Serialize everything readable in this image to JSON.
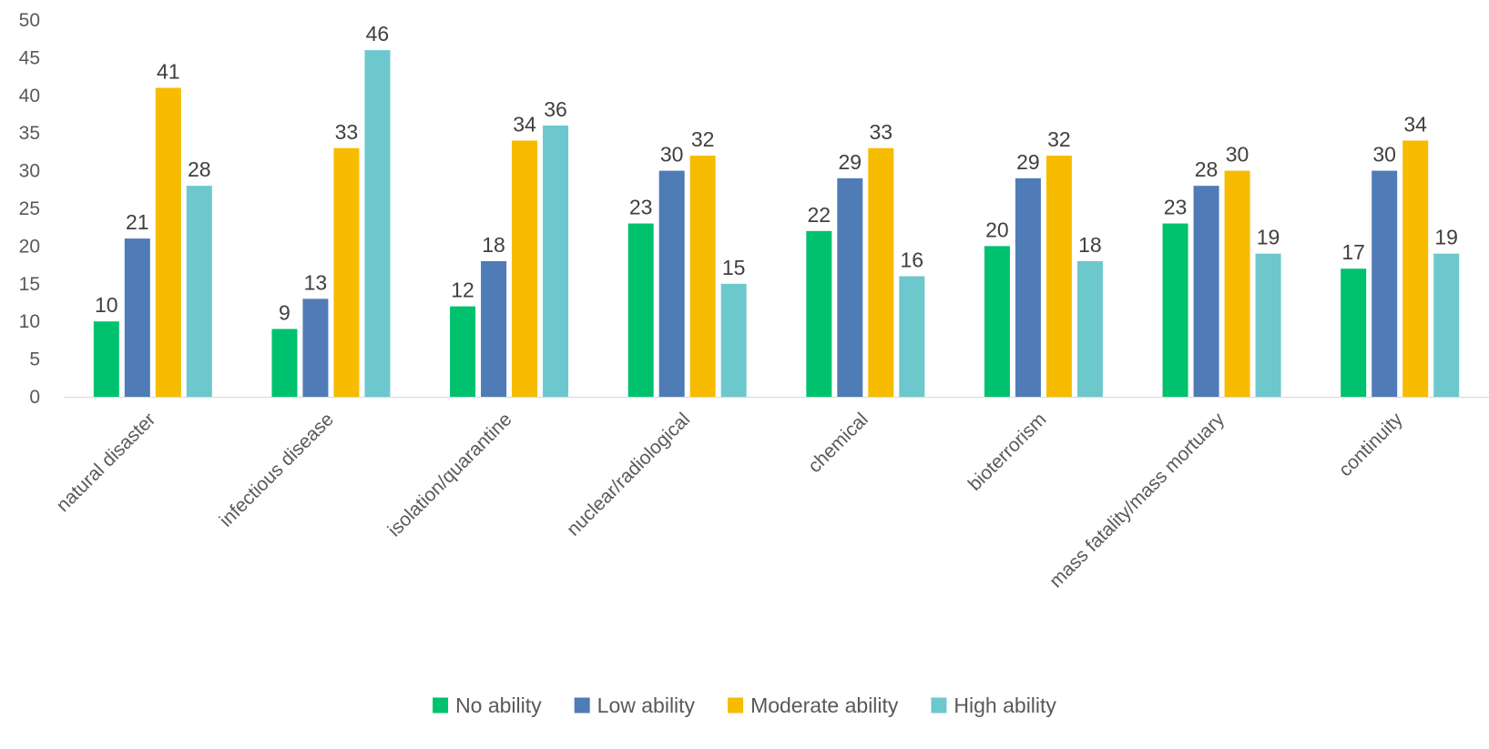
{
  "chart_data": {
    "type": "bar",
    "title": "",
    "xlabel": "",
    "ylabel": "",
    "ylim": [
      0,
      50
    ],
    "yticks": [
      0,
      5,
      10,
      15,
      20,
      25,
      30,
      35,
      40,
      45,
      50
    ],
    "grid": false,
    "legend_position": "bottom",
    "categories": [
      "natural disaster",
      "infectious disease",
      "isolation/quarantine",
      "nuclear/radiological",
      "chemical",
      "bioterrorism",
      "mass fatality/mass mortuary",
      "continuity"
    ],
    "series": [
      {
        "name": "No ability",
        "color": "#00c26e",
        "values": [
          10,
          9,
          12,
          23,
          22,
          20,
          23,
          17
        ]
      },
      {
        "name": "Low ability",
        "color": "#4f7bb6",
        "values": [
          21,
          13,
          18,
          30,
          29,
          29,
          28,
          30
        ]
      },
      {
        "name": "Moderate ability",
        "color": "#f7bb00",
        "values": [
          41,
          33,
          34,
          32,
          33,
          32,
          30,
          34
        ]
      },
      {
        "name": "High ability",
        "color": "#6cc8cc",
        "values": [
          28,
          46,
          36,
          15,
          16,
          18,
          19,
          19
        ]
      }
    ]
  }
}
